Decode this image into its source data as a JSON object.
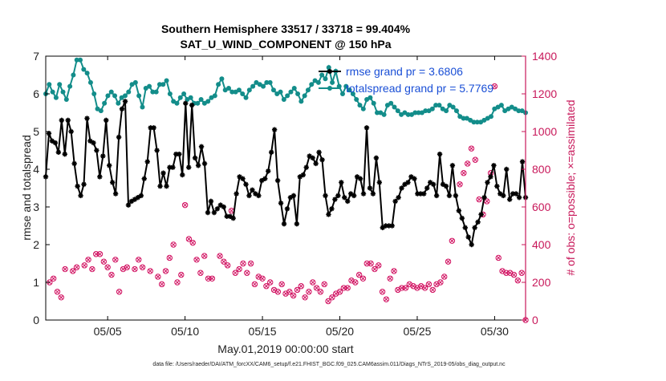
{
  "chart_data": {
    "type": "line",
    "title_line1": "Southern Hemisphere 33517 / 33718 = 99.404%",
    "title_line2": "SAT_U_WIND_COMPONENT @ 150 hPa",
    "xlabel": "May.01,2019 00:00:00 start",
    "ylabel_left": "rmse and totalspread",
    "ylabel_right": "# of obs: o=possible; ×=assimilated",
    "footnote": "data file: /Users/raeder/DAI/ATM_forcXX/CAM6_setup/f.e21.FHIST_BGC.f09_025.CAM6assim.011/Diags_NTrS_2019-05/obs_diag_output.nc",
    "xlim": [
      1,
      32
    ],
    "ylim_left": [
      0,
      7
    ],
    "ylim_right": [
      0,
      1400
    ],
    "x_ticks": [
      5,
      10,
      15,
      20,
      25,
      30
    ],
    "x_tick_labels": [
      "05/05",
      "05/10",
      "05/15",
      "05/20",
      "05/25",
      "05/30"
    ],
    "y_left_ticks": [
      "0",
      "1",
      "2",
      "3",
      "4",
      "5",
      "6",
      "7"
    ],
    "y_right_ticks": [
      "0",
      "200",
      "400",
      "600",
      "800",
      "1000",
      "1200",
      "1400"
    ],
    "legend_position": "top-right",
    "colors": {
      "rmse": "#000000",
      "totalspread": "#138d8a",
      "obs": "#d11060",
      "right_axis": "#c8185a",
      "legend_text": "#1a4fd6"
    },
    "series": [
      {
        "name": "rmse grand pr = 3.6806",
        "axis": "left",
        "color": "#000000",
        "values": [
          3.8,
          4.95,
          4.75,
          4.7,
          4.45,
          5.3,
          4.4,
          5.3,
          5.0,
          4.15,
          3.55,
          3.3,
          3.6,
          5.35,
          4.75,
          4.7,
          4.5,
          3.8,
          4.35,
          5.3,
          4.1,
          3.65,
          3.35,
          4.85,
          5.6,
          5.8,
          3.05,
          3.15,
          3.2,
          3.25,
          3.3,
          3.75,
          4.2,
          5.1,
          5.1,
          4.5,
          3.55,
          3.9,
          3.55,
          4.05,
          4.05,
          4.4,
          4.4,
          3.85,
          5.75,
          4.05,
          5.7,
          4.3,
          4.1,
          4.6,
          4.15,
          2.85,
          3.15,
          2.85,
          2.95,
          3.05,
          3.0,
          2.75,
          2.75,
          2.7,
          3.35,
          3.8,
          3.75,
          3.6,
          3.3,
          3.45,
          3.35,
          3.3,
          3.7,
          3.75,
          3.95,
          4.45,
          5.05,
          3.7,
          3.1,
          2.55,
          2.95,
          3.25,
          3.3,
          2.55,
          3.8,
          3.85,
          4.05,
          4.35,
          4.3,
          4.15,
          4.45,
          4.25,
          3.3,
          2.8,
          2.95,
          3.2,
          3.3,
          3.65,
          3.25,
          3.15,
          3.35,
          3.3,
          3.8,
          3.75,
          3.35,
          5.1,
          3.5,
          3.35,
          4.3,
          3.65,
          2.45,
          2.5,
          2.5,
          2.5,
          3.15,
          3.25,
          3.5,
          3.6,
          3.65,
          3.8,
          3.75,
          3.35,
          3.35,
          3.35,
          3.5,
          3.65,
          3.6,
          3.3,
          4.4,
          3.6,
          3.55,
          3.3,
          4.1,
          3.3,
          2.9,
          2.7,
          2.45,
          2.2,
          2.0,
          2.45,
          2.6,
          2.8,
          3.25,
          3.65,
          3.8,
          4.1,
          3.55,
          3.35,
          3.3,
          4.0,
          3.2,
          3.35,
          3.35,
          3.25,
          4.2,
          3.25
        ]
      },
      {
        "name": "totalspread grand pr = 5.7769",
        "axis": "left",
        "color": "#138d8a",
        "values": [
          6.0,
          6.25,
          6.05,
          5.9,
          6.25,
          6.05,
          5.85,
          6.2,
          6.5,
          6.9,
          6.9,
          6.65,
          6.55,
          6.3,
          6.0,
          5.6,
          5.55,
          5.75,
          5.95,
          6.05,
          5.95,
          5.75,
          5.9,
          5.95,
          6.05,
          6.25,
          6.3,
          5.95,
          5.65,
          6.15,
          6.2,
          6.05,
          6.05,
          6.25,
          6.25,
          6.35,
          6.0,
          5.8,
          5.75,
          5.9,
          6.0,
          5.85,
          5.9,
          5.75,
          5.75,
          5.85,
          5.75,
          5.8,
          5.9,
          5.95,
          6.25,
          6.4,
          6.1,
          6.15,
          6.05,
          6.05,
          6.1,
          6.0,
          5.9,
          6.1,
          6.2,
          6.3,
          6.25,
          6.2,
          6.3,
          6.3,
          6.1,
          6.0,
          6.05,
          5.85,
          5.95,
          6.05,
          6.15,
          6.0,
          5.8,
          5.95,
          6.1,
          6.25,
          6.35,
          6.3,
          6.5,
          6.4,
          6.7,
          6.3,
          6.6,
          6.2,
          6.0,
          6.2,
          6.1,
          6.0,
          5.85,
          5.7,
          5.6,
          5.85,
          5.9,
          5.75,
          5.5,
          5.5,
          5.45,
          5.7,
          5.75,
          5.65,
          5.55,
          5.45,
          5.5,
          5.45,
          5.45,
          5.5,
          5.5,
          5.5,
          5.55,
          5.55,
          5.6,
          5.7,
          5.7,
          5.6,
          5.55,
          5.7,
          5.65,
          5.55,
          5.4,
          5.35,
          5.35,
          5.3,
          5.25,
          5.25,
          5.25,
          5.3,
          5.35,
          5.4,
          5.6,
          5.65,
          5.7,
          5.55,
          5.6,
          5.65,
          5.6,
          5.55,
          5.55,
          5.5
        ]
      },
      {
        "name": "obs",
        "axis": "right",
        "color": "#d11060",
        "points": [
          [
            1.25,
            200
          ],
          [
            1.5,
            220
          ],
          [
            1.75,
            150
          ],
          [
            2.0,
            120
          ],
          [
            2.25,
            270
          ],
          [
            2.75,
            260
          ],
          [
            3.0,
            280
          ],
          [
            3.5,
            290
          ],
          [
            3.75,
            320
          ],
          [
            4.0,
            270
          ],
          [
            4.25,
            350
          ],
          [
            4.5,
            350
          ],
          [
            4.75,
            310
          ],
          [
            5.0,
            280
          ],
          [
            5.25,
            240
          ],
          [
            5.5,
            320
          ],
          [
            5.75,
            150
          ],
          [
            6.0,
            270
          ],
          [
            6.25,
            280
          ],
          [
            6.75,
            270
          ],
          [
            7.0,
            320
          ],
          [
            7.25,
            280
          ],
          [
            7.75,
            260
          ],
          [
            8.25,
            230
          ],
          [
            8.5,
            190
          ],
          [
            8.75,
            260
          ],
          [
            9.0,
            330
          ],
          [
            9.25,
            400
          ],
          [
            9.5,
            200
          ],
          [
            9.75,
            240
          ],
          [
            10.0,
            610
          ],
          [
            10.25,
            430
          ],
          [
            10.5,
            410
          ],
          [
            10.75,
            320
          ],
          [
            11.0,
            250
          ],
          [
            11.25,
            340
          ],
          [
            11.5,
            220
          ],
          [
            11.75,
            220
          ],
          [
            12.25,
            340
          ],
          [
            12.5,
            310
          ],
          [
            12.75,
            290
          ],
          [
            13.0,
            580
          ],
          [
            13.25,
            250
          ],
          [
            13.5,
            270
          ],
          [
            13.75,
            300
          ],
          [
            14.0,
            250
          ],
          [
            14.25,
            300
          ],
          [
            14.5,
            190
          ],
          [
            14.75,
            230
          ],
          [
            15.0,
            220
          ],
          [
            15.25,
            180
          ],
          [
            15.5,
            200
          ],
          [
            15.75,
            160
          ],
          [
            16.0,
            150
          ],
          [
            16.25,
            190
          ],
          [
            16.5,
            140
          ],
          [
            16.75,
            150
          ],
          [
            17.0,
            130
          ],
          [
            17.25,
            160
          ],
          [
            17.5,
            180
          ],
          [
            17.75,
            120
          ],
          [
            18.0,
            150
          ],
          [
            18.25,
            200
          ],
          [
            18.5,
            170
          ],
          [
            18.75,
            150
          ],
          [
            19.0,
            190
          ],
          [
            19.25,
            100
          ],
          [
            19.5,
            120
          ],
          [
            19.75,
            140
          ],
          [
            20.0,
            150
          ],
          [
            20.25,
            170
          ],
          [
            20.5,
            170
          ],
          [
            20.75,
            210
          ],
          [
            21.0,
            200
          ],
          [
            21.25,
            240
          ],
          [
            21.5,
            220
          ],
          [
            21.75,
            300
          ],
          [
            22.0,
            300
          ],
          [
            22.25,
            270
          ],
          [
            22.5,
            290
          ],
          [
            22.75,
            150
          ],
          [
            23.0,
            110
          ],
          [
            23.25,
            220
          ],
          [
            23.5,
            260
          ],
          [
            23.75,
            160
          ],
          [
            24.0,
            170
          ],
          [
            24.25,
            170
          ],
          [
            24.5,
            190
          ],
          [
            24.75,
            180
          ],
          [
            25.0,
            170
          ],
          [
            25.25,
            180
          ],
          [
            25.5,
            170
          ],
          [
            25.75,
            190
          ],
          [
            26.0,
            160
          ],
          [
            26.25,
            190
          ],
          [
            26.5,
            200
          ],
          [
            26.75,
            230
          ],
          [
            27.0,
            310
          ],
          [
            27.25,
            420
          ],
          [
            27.75,
            720
          ],
          [
            28.0,
            780
          ],
          [
            28.25,
            830
          ],
          [
            28.5,
            910
          ],
          [
            28.75,
            850
          ],
          [
            29.0,
            640
          ],
          [
            29.25,
            560
          ],
          [
            29.5,
            630
          ],
          [
            29.75,
            780
          ],
          [
            30.0,
            1240
          ],
          [
            30.25,
            330
          ],
          [
            30.5,
            260
          ],
          [
            30.75,
            250
          ],
          [
            31.0,
            250
          ],
          [
            31.25,
            240
          ],
          [
            31.5,
            210
          ],
          [
            31.75,
            250
          ],
          [
            32.0,
            0
          ]
        ]
      }
    ]
  }
}
